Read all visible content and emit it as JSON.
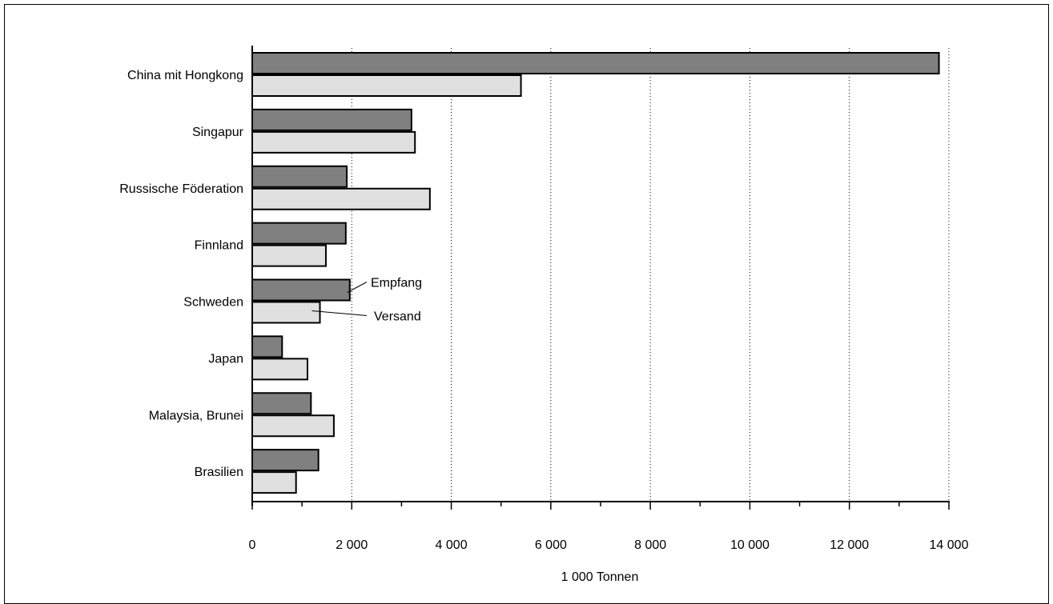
{
  "chart_data": {
    "type": "bar",
    "orientation": "horizontal",
    "categories": [
      "China mit Hongkong",
      "Singapur",
      "Russische Föderation",
      "Finnland",
      "Schweden",
      "Japan",
      "Malaysia, Brunei",
      "Brasilien"
    ],
    "series": [
      {
        "name": "Empfang",
        "values": [
          13800,
          3200,
          1900,
          1880,
          1960,
          600,
          1180,
          1330
        ],
        "color": "#808080"
      },
      {
        "name": "Versand",
        "values": [
          5400,
          3270,
          3570,
          1480,
          1360,
          1110,
          1640,
          880
        ],
        "color": "#e0e0e0"
      }
    ],
    "xlabel": "1 000 Tonnen",
    "ylabel": "",
    "xlim": [
      0,
      14000
    ],
    "xticks": [
      0,
      2000,
      4000,
      6000,
      8000,
      10000,
      12000,
      14000
    ],
    "xtick_labels": [
      "0",
      "2 000",
      "4 000",
      "6 000",
      "8 000",
      "10 000",
      "12 000",
      "14 000"
    ],
    "grid": "vertical dotted",
    "legend": "inline labels next to Schweden bars"
  }
}
